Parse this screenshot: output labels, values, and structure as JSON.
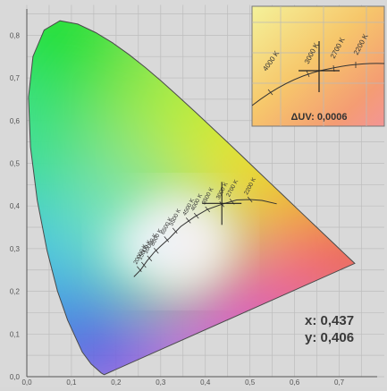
{
  "chart_data": {
    "type": "chromaticity",
    "xlim": [
      0.0,
      0.75
    ],
    "ylim": [
      0.0,
      0.85
    ],
    "x_ticks": [
      "0,0",
      "0,1",
      "0,2",
      "0,3",
      "0,4",
      "0,5",
      "0,6",
      "0,7"
    ],
    "y_ticks": [
      "0,0",
      "0,1",
      "0,2",
      "0,3",
      "0,4",
      "0,5",
      "0,6",
      "0,7",
      "0,8"
    ],
    "grid": true,
    "spectral_locus": [
      [
        0.1741,
        0.005
      ],
      [
        0.173,
        0.0048
      ],
      [
        0.1666,
        0.0089
      ],
      [
        0.144,
        0.0297
      ],
      [
        0.1241,
        0.0578
      ],
      [
        0.0913,
        0.1327
      ],
      [
        0.0687,
        0.2007
      ],
      [
        0.0454,
        0.295
      ],
      [
        0.0235,
        0.4127
      ],
      [
        0.0082,
        0.5384
      ],
      [
        0.0039,
        0.6548
      ],
      [
        0.0139,
        0.7502
      ],
      [
        0.0389,
        0.812
      ],
      [
        0.0743,
        0.8338
      ],
      [
        0.1142,
        0.8262
      ],
      [
        0.1547,
        0.8059
      ],
      [
        0.1929,
        0.7816
      ],
      [
        0.2296,
        0.7543
      ],
      [
        0.2658,
        0.7243
      ],
      [
        0.3016,
        0.6923
      ],
      [
        0.3373,
        0.6589
      ],
      [
        0.3731,
        0.6245
      ],
      [
        0.4087,
        0.5896
      ],
      [
        0.4441,
        0.5547
      ],
      [
        0.4788,
        0.5202
      ],
      [
        0.5125,
        0.4866
      ],
      [
        0.5448,
        0.4544
      ],
      [
        0.5752,
        0.4242
      ],
      [
        0.6029,
        0.3965
      ],
      [
        0.627,
        0.3725
      ],
      [
        0.6482,
        0.3514
      ],
      [
        0.6658,
        0.334
      ],
      [
        0.6915,
        0.3083
      ],
      [
        0.7079,
        0.292
      ],
      [
        0.7347,
        0.2653
      ]
    ],
    "planckian_locus": [
      [
        0.24,
        0.234
      ],
      [
        0.255,
        0.25
      ],
      [
        0.27,
        0.272
      ],
      [
        0.285,
        0.291
      ],
      [
        0.3,
        0.306
      ],
      [
        0.32,
        0.325
      ],
      [
        0.345,
        0.352
      ],
      [
        0.375,
        0.374
      ],
      [
        0.405,
        0.392
      ],
      [
        0.437,
        0.404
      ],
      [
        0.47,
        0.414
      ],
      [
        0.5,
        0.415
      ],
      [
        0.527,
        0.413
      ],
      [
        0.56,
        0.405
      ]
    ],
    "cct_labels": [
      {
        "label": "20000 K",
        "x": 0.252,
        "y": 0.252
      },
      {
        "label": "15000 K",
        "x": 0.262,
        "y": 0.262
      },
      {
        "label": "10000 K",
        "x": 0.275,
        "y": 0.277
      },
      {
        "label": "8000 K",
        "x": 0.29,
        "y": 0.295
      },
      {
        "label": "6500 K",
        "x": 0.313,
        "y": 0.322
      },
      {
        "label": "5500 K",
        "x": 0.332,
        "y": 0.342
      },
      {
        "label": "4500 K",
        "x": 0.362,
        "y": 0.366
      },
      {
        "label": "4000 K",
        "x": 0.38,
        "y": 0.377
      },
      {
        "label": "3500 K",
        "x": 0.405,
        "y": 0.392
      },
      {
        "label": "3000 K",
        "x": 0.437,
        "y": 0.404
      },
      {
        "label": "2700 K",
        "x": 0.46,
        "y": 0.41
      },
      {
        "label": "2200 K",
        "x": 0.5,
        "y": 0.415
      }
    ],
    "measurement": {
      "x": 0.437,
      "y": 0.406
    },
    "readout_x": "x: 0,437",
    "readout_y": "y: 0,406",
    "inset": {
      "delta_uv": "ΔUV: 0,0006",
      "labels": [
        "4000 K",
        "3000 K",
        "2700 K",
        "2200 K"
      ]
    }
  }
}
